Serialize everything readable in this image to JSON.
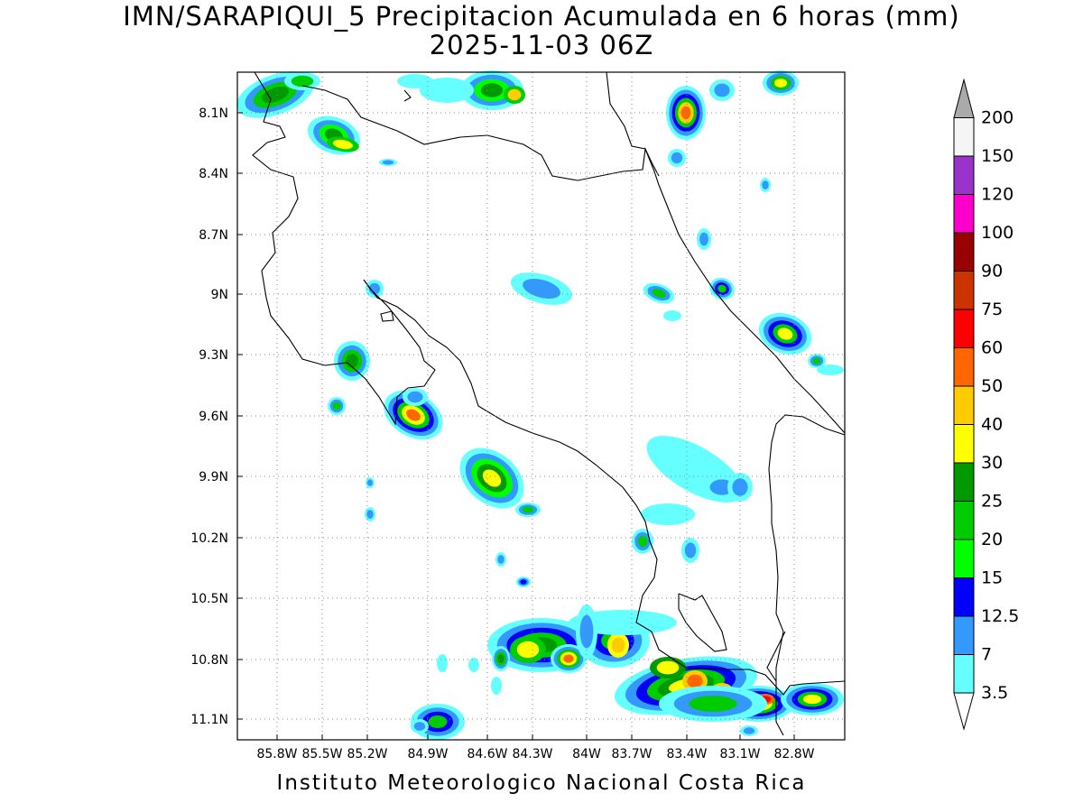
{
  "title_line1": "IMN/SARAPIQUI_5 Precipitacion Acumulada en 6 horas (mm)",
  "title_line2": "2025-11-03 06Z",
  "credit": "Instituto Meteorologico Nacional Costa Rica",
  "map": {
    "lon_range": [
      -86.05,
      -82.5
    ],
    "lat_range": [
      8.0,
      11.3
    ],
    "lon_ticks": [
      "85.8W",
      "85.5W",
      "85.2W",
      "84.9W",
      "84.6W",
      "84.3W",
      "84W",
      "83.7W",
      "83.4W",
      "83.1W",
      "82.8W"
    ],
    "lat_ticks": [
      "8.1N",
      "8.4N",
      "8.7N",
      "9N",
      "9.3N",
      "9.6N",
      "9.9N",
      "10.2N",
      "10.5N",
      "10.8N",
      "11.1N"
    ],
    "grid": "dotted"
  },
  "colorbar": {
    "labels": [
      "3.5",
      "7",
      "12.5",
      "15",
      "20",
      "25",
      "30",
      "40",
      "50",
      "60",
      "75",
      "90",
      "100",
      "120",
      "150",
      "200"
    ],
    "colors": [
      "#66ffff",
      "#3399ff",
      "#0000ff",
      "#00ff00",
      "#00cc00",
      "#009900",
      "#ffff00",
      "#ffcc00",
      "#ff6600",
      "#ff0000",
      "#cc3300",
      "#990000",
      "#ff00cc",
      "#9933cc",
      "#f5f5f5",
      "#aaaaaa"
    ]
  }
}
